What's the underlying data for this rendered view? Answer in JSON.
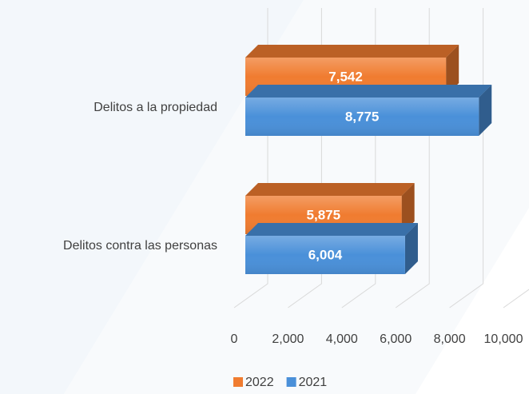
{
  "chart_data": {
    "type": "bar3d_horizontal",
    "categories": [
      "Delitos a la propiedad",
      "Delitos contra las personas"
    ],
    "series": [
      {
        "name": "2022",
        "color": "#f07c30",
        "values": [
          7542,
          5875
        ],
        "value_labels": [
          "7,542",
          "5,875"
        ]
      },
      {
        "name": "2021",
        "color": "#4a90d9",
        "values": [
          8775,
          6004
        ],
        "value_labels": [
          "8,775",
          "6,004"
        ]
      }
    ],
    "xlim": [
      0,
      10000
    ],
    "xticks": [
      0,
      {
        "value": 2000,
        "label": "2,000"
      },
      {
        "value": 4000,
        "label": "4,000"
      },
      {
        "value": 6000,
        "label": "6,000"
      },
      {
        "value": 8000,
        "label": "8,000"
      },
      {
        "value": 10000,
        "label": "10,000"
      }
    ],
    "grid": true,
    "legend": "bottom"
  }
}
